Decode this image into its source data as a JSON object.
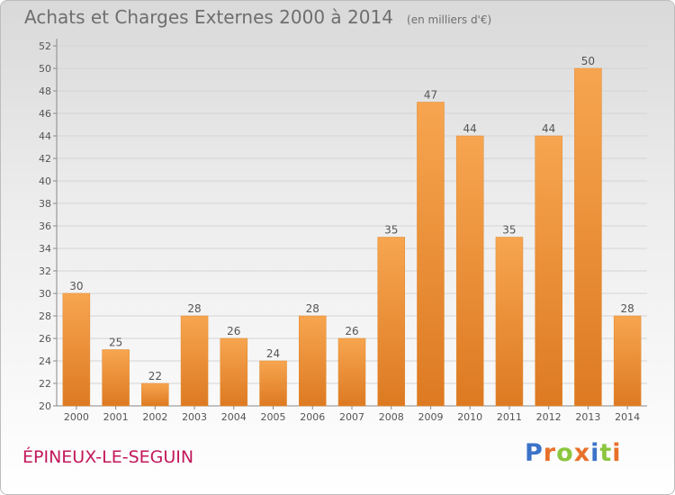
{
  "chart_data": {
    "type": "bar",
    "title": "Achats et Charges Externes 2000 à 2014",
    "subtitle": "(en milliers d'€)",
    "categories": [
      "2000",
      "2001",
      "2002",
      "2003",
      "2004",
      "2005",
      "2006",
      "2007",
      "2008",
      "2009",
      "2010",
      "2011",
      "2012",
      "2013",
      "2014"
    ],
    "values": [
      30,
      25,
      22,
      28,
      26,
      24,
      28,
      26,
      35,
      47,
      44,
      35,
      44,
      50,
      28
    ],
    "ylim": [
      20,
      52
    ],
    "yticks": [
      20,
      22,
      24,
      26,
      28,
      30,
      32,
      34,
      36,
      38,
      40,
      42,
      44,
      46,
      48,
      50,
      52
    ],
    "grid": true,
    "bar_color": "#f0943a",
    "bar_color_dark": "#d9731a",
    "grid_color": "#d4d4d4",
    "text_color": "#555555"
  },
  "commune_name": "ÉPINEUX-LE-SEGUIN",
  "logo": {
    "text": "Proxiti",
    "letter_colors": [
      "#3b73c8",
      "#e8712a",
      "#8cc63f",
      "#e8712a",
      "#3b73c8",
      "#8cc63f",
      "#e8712a"
    ]
  }
}
